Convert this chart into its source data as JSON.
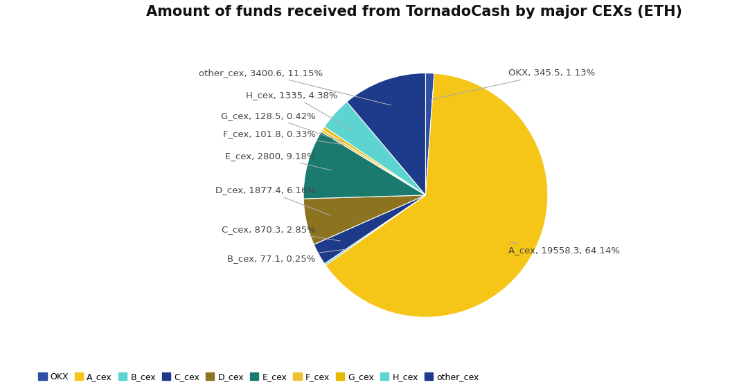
{
  "title": "Amount of funds received from TornadoCash by major CEXs (ETH)",
  "labels": [
    "OKX",
    "A_cex",
    "B_cex",
    "C_cex",
    "D_cex",
    "E_cex",
    "F_cex",
    "G_cex",
    "H_cex",
    "other_cex"
  ],
  "values": [
    345.5,
    19558.3,
    77.1,
    870.3,
    1877.4,
    2800,
    101.8,
    128.5,
    1335,
    3400.6
  ],
  "slice_colors": [
    "#2e4fa3",
    "#f5c518",
    "#5dd4d0",
    "#1e3a8a",
    "#8b7320",
    "#1a7a6e",
    "#f0c030",
    "#e8b800",
    "#5dd4d0",
    "#1e3a8a"
  ],
  "legend_colors": [
    "#2e4fa3",
    "#f5c518",
    "#5dd4d0",
    "#1e3a8a",
    "#8b7320",
    "#1a7a6e",
    "#f0c030",
    "#e8b800",
    "#5dd4d0",
    "#1e3a8a"
  ],
  "background_color": "#ffffff",
  "label_fontsize": 9.5,
  "title_fontsize": 15,
  "legend_fontsize": 9
}
